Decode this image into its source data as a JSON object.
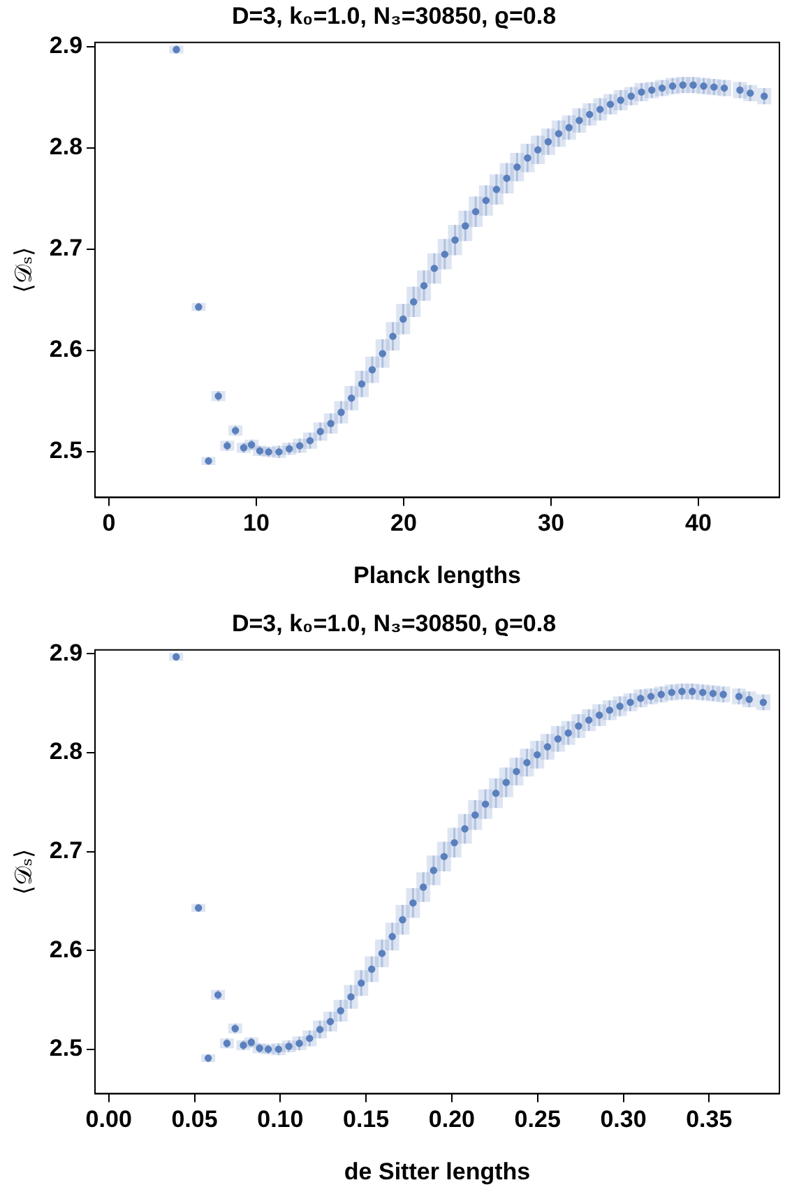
{
  "chart_data": [
    {
      "type": "scatter",
      "title": "D=3, k₀=1.0, N₃=30850, ϱ=0.8",
      "xlabel": "Planck lengths",
      "ylabel": "⟨𝒟ₛ⟩",
      "marker": "circle",
      "grid": false,
      "xlim": [
        -0.94,
        45.5
      ],
      "xticks": [
        0,
        10,
        20,
        30,
        40
      ],
      "ylim": [
        2.455,
        2.904
      ],
      "yticks": [
        2.5,
        2.6,
        2.7,
        2.8,
        2.9
      ],
      "series": [
        {
          "color": "#5a7fbd",
          "x": [
            4.58,
            6.09,
            7.43,
            6.76,
            8.03,
            8.59,
            9.15,
            9.68,
            10.24,
            10.84,
            11.54,
            12.24,
            12.95,
            13.65,
            14.35,
            15.06,
            15.76,
            16.46,
            17.16,
            17.87,
            18.57,
            19.27,
            19.97,
            20.68,
            21.38,
            22.08,
            22.79,
            23.49,
            24.19,
            24.89,
            25.59,
            26.3,
            27.0,
            27.7,
            28.41,
            29.11,
            29.81,
            30.52,
            31.22,
            31.92,
            32.62,
            33.33,
            34.03,
            34.73,
            35.44,
            36.14,
            36.84,
            37.54,
            38.25,
            38.95,
            39.65,
            40.36,
            41.06,
            41.76,
            42.82,
            43.52,
            44.47
          ],
          "values": [
            2.897,
            2.643,
            2.555,
            2.491,
            2.506,
            2.521,
            2.504,
            2.507,
            2.501,
            2.5,
            2.5,
            2.503,
            2.506,
            2.511,
            2.52,
            2.528,
            2.539,
            2.553,
            2.567,
            2.581,
            2.597,
            2.614,
            2.631,
            2.648,
            2.664,
            2.681,
            2.695,
            2.709,
            2.723,
            2.737,
            2.748,
            2.759,
            2.77,
            2.781,
            2.79,
            2.798,
            2.806,
            2.814,
            2.82,
            2.827,
            2.833,
            2.838,
            2.843,
            2.847,
            2.851,
            2.855,
            2.857,
            2.859,
            2.861,
            2.862,
            2.862,
            2.861,
            2.86,
            2.859,
            2.857,
            2.854,
            2.851
          ],
          "errors": [
            0.004,
            0.004,
            0.005,
            0.004,
            0.005,
            0.005,
            0.005,
            0.005,
            0.005,
            0.005,
            0.006,
            0.006,
            0.007,
            0.008,
            0.009,
            0.01,
            0.011,
            0.012,
            0.013,
            0.013,
            0.014,
            0.014,
            0.015,
            0.015,
            0.015,
            0.015,
            0.015,
            0.015,
            0.015,
            0.015,
            0.015,
            0.015,
            0.015,
            0.014,
            0.014,
            0.014,
            0.013,
            0.013,
            0.012,
            0.012,
            0.011,
            0.011,
            0.01,
            0.01,
            0.009,
            0.009,
            0.008,
            0.008,
            0.008,
            0.008,
            0.008,
            0.008,
            0.008,
            0.008,
            0.008,
            0.008,
            0.008
          ]
        }
      ]
    },
    {
      "type": "scatter",
      "title": "D=3, k₀=1.0, N₃=30850, ϱ=0.8",
      "xlabel": "de Sitter lengths",
      "ylabel": "⟨𝒟ₛ⟩",
      "marker": "circle",
      "grid": false,
      "xlim": [
        -0.008,
        0.391
      ],
      "xticks": [
        {
          "value": 0,
          "label": "0.00"
        },
        {
          "value": 0.05,
          "label": "0.05"
        },
        {
          "value": 0.1,
          "label": "0.10"
        },
        {
          "value": 0.15,
          "label": "0.15"
        },
        {
          "value": 0.2,
          "label": "0.20"
        },
        {
          "value": 0.25,
          "label": "0.25"
        },
        {
          "value": 0.3,
          "label": "0.30"
        },
        {
          "value": 0.35,
          "label": "0.35"
        }
      ],
      "ylim": [
        2.455,
        2.904
      ],
      "yticks": [
        2.5,
        2.6,
        2.7,
        2.8,
        2.9
      ],
      "series": [
        {
          "color": "#5a7fbd",
          "x": [
            0.0393,
            0.0523,
            0.0637,
            0.058,
            0.0689,
            0.0737,
            0.0785,
            0.0831,
            0.0879,
            0.093,
            0.099,
            0.105,
            0.1111,
            0.1171,
            0.1231,
            0.1292,
            0.1352,
            0.1412,
            0.1472,
            0.1533,
            0.1593,
            0.1653,
            0.1713,
            0.1774,
            0.1834,
            0.1894,
            0.1955,
            0.2015,
            0.2076,
            0.2136,
            0.2196,
            0.2257,
            0.2317,
            0.2377,
            0.2438,
            0.2498,
            0.2558,
            0.2619,
            0.2679,
            0.2739,
            0.2799,
            0.286,
            0.292,
            0.298,
            0.3041,
            0.3101,
            0.3161,
            0.3221,
            0.3282,
            0.3342,
            0.3402,
            0.3463,
            0.3523,
            0.3583,
            0.3674,
            0.3734,
            0.3816
          ],
          "values": [
            2.897,
            2.643,
            2.555,
            2.491,
            2.506,
            2.521,
            2.504,
            2.507,
            2.501,
            2.5,
            2.5,
            2.503,
            2.506,
            2.511,
            2.52,
            2.528,
            2.539,
            2.553,
            2.567,
            2.581,
            2.597,
            2.614,
            2.631,
            2.648,
            2.664,
            2.681,
            2.695,
            2.709,
            2.723,
            2.737,
            2.748,
            2.759,
            2.77,
            2.781,
            2.79,
            2.798,
            2.806,
            2.814,
            2.82,
            2.827,
            2.833,
            2.838,
            2.843,
            2.847,
            2.851,
            2.855,
            2.857,
            2.859,
            2.861,
            2.862,
            2.862,
            2.861,
            2.86,
            2.859,
            2.857,
            2.854,
            2.851
          ],
          "errors": [
            0.004,
            0.004,
            0.005,
            0.004,
            0.005,
            0.005,
            0.005,
            0.005,
            0.005,
            0.005,
            0.006,
            0.006,
            0.007,
            0.008,
            0.009,
            0.01,
            0.011,
            0.012,
            0.013,
            0.013,
            0.014,
            0.014,
            0.015,
            0.015,
            0.015,
            0.015,
            0.015,
            0.015,
            0.015,
            0.015,
            0.015,
            0.015,
            0.015,
            0.014,
            0.014,
            0.014,
            0.013,
            0.013,
            0.012,
            0.012,
            0.011,
            0.011,
            0.01,
            0.01,
            0.009,
            0.009,
            0.008,
            0.008,
            0.008,
            0.008,
            0.008,
            0.008,
            0.008,
            0.008,
            0.008,
            0.008,
            0.008
          ]
        }
      ]
    }
  ]
}
